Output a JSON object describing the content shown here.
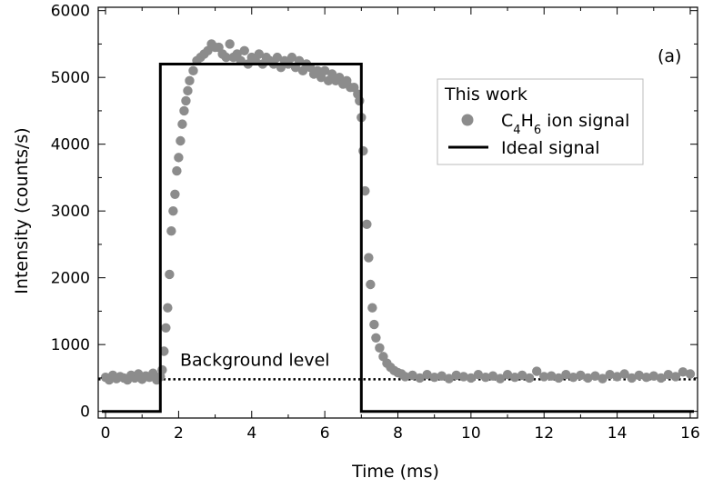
{
  "chart_data": {
    "type": "scatter",
    "xlabel": "Time (ms)",
    "ylabel": "Intensity (counts/s)",
    "xlim": [
      -0.2,
      16.2
    ],
    "ylim": [
      -100,
      6050
    ],
    "x_ticks": [
      0,
      2,
      4,
      6,
      8,
      10,
      12,
      14,
      16
    ],
    "y_ticks": [
      0,
      1000,
      2000,
      3000,
      4000,
      5000,
      6000
    ],
    "panel_label": "(a)",
    "legend": {
      "title": "This work",
      "position": "top-right",
      "entries": [
        {
          "label_main": "C",
          "sub1": "4",
          "mid": "H",
          "sub2": "6",
          "label_rest": " ion signal",
          "marker": "circle",
          "color": "#8c8c8c"
        },
        {
          "label": "Ideal signal",
          "marker": "line",
          "color": "#000000"
        }
      ]
    },
    "series": [
      {
        "name": "C4H6 ion signal",
        "style": "markers",
        "color": "#8c8c8c",
        "points": [
          [
            0.0,
            510
          ],
          [
            0.1,
            470
          ],
          [
            0.2,
            540
          ],
          [
            0.3,
            490
          ],
          [
            0.4,
            520
          ],
          [
            0.5,
            500
          ],
          [
            0.6,
            470
          ],
          [
            0.7,
            540
          ],
          [
            0.8,
            500
          ],
          [
            0.9,
            560
          ],
          [
            1.0,
            480
          ],
          [
            1.1,
            530
          ],
          [
            1.2,
            510
          ],
          [
            1.3,
            570
          ],
          [
            1.4,
            470
          ],
          [
            1.5,
            520
          ],
          [
            1.55,
            620
          ],
          [
            1.6,
            900
          ],
          [
            1.65,
            1250
          ],
          [
            1.7,
            1550
          ],
          [
            1.75,
            2050
          ],
          [
            1.8,
            2700
          ],
          [
            1.85,
            3000
          ],
          [
            1.9,
            3250
          ],
          [
            1.95,
            3600
          ],
          [
            2.0,
            3800
          ],
          [
            2.05,
            4050
          ],
          [
            2.1,
            4300
          ],
          [
            2.15,
            4500
          ],
          [
            2.2,
            4650
          ],
          [
            2.25,
            4800
          ],
          [
            2.3,
            4950
          ],
          [
            2.4,
            5100
          ],
          [
            2.5,
            5250
          ],
          [
            2.6,
            5300
          ],
          [
            2.7,
            5350
          ],
          [
            2.8,
            5400
          ],
          [
            2.9,
            5500
          ],
          [
            3.0,
            5450
          ],
          [
            3.1,
            5450
          ],
          [
            3.2,
            5350
          ],
          [
            3.3,
            5300
          ],
          [
            3.4,
            5500
          ],
          [
            3.5,
            5300
          ],
          [
            3.6,
            5350
          ],
          [
            3.7,
            5250
          ],
          [
            3.8,
            5400
          ],
          [
            3.9,
            5200
          ],
          [
            4.0,
            5300
          ],
          [
            4.1,
            5250
          ],
          [
            4.2,
            5350
          ],
          [
            4.3,
            5200
          ],
          [
            4.4,
            5300
          ],
          [
            4.5,
            5250
          ],
          [
            4.6,
            5200
          ],
          [
            4.7,
            5300
          ],
          [
            4.8,
            5150
          ],
          [
            4.9,
            5250
          ],
          [
            5.0,
            5200
          ],
          [
            5.1,
            5300
          ],
          [
            5.2,
            5150
          ],
          [
            5.3,
            5250
          ],
          [
            5.4,
            5100
          ],
          [
            5.5,
            5200
          ],
          [
            5.6,
            5150
          ],
          [
            5.7,
            5050
          ],
          [
            5.8,
            5100
          ],
          [
            5.9,
            5000
          ],
          [
            6.0,
            5100
          ],
          [
            6.1,
            4950
          ],
          [
            6.2,
            5050
          ],
          [
            6.3,
            4950
          ],
          [
            6.4,
            5000
          ],
          [
            6.5,
            4900
          ],
          [
            6.6,
            4950
          ],
          [
            6.7,
            4850
          ],
          [
            6.8,
            4850
          ],
          [
            6.9,
            4750
          ],
          [
            6.95,
            4650
          ],
          [
            7.0,
            4400
          ],
          [
            7.05,
            3900
          ],
          [
            7.1,
            3300
          ],
          [
            7.15,
            2800
          ],
          [
            7.2,
            2300
          ],
          [
            7.25,
            1900
          ],
          [
            7.3,
            1550
          ],
          [
            7.35,
            1300
          ],
          [
            7.4,
            1100
          ],
          [
            7.5,
            950
          ],
          [
            7.6,
            820
          ],
          [
            7.7,
            720
          ],
          [
            7.8,
            660
          ],
          [
            7.9,
            610
          ],
          [
            8.0,
            580
          ],
          [
            8.1,
            560
          ],
          [
            8.2,
            520
          ],
          [
            8.4,
            540
          ],
          [
            8.6,
            500
          ],
          [
            8.8,
            550
          ],
          [
            9.0,
            510
          ],
          [
            9.2,
            530
          ],
          [
            9.4,
            490
          ],
          [
            9.6,
            540
          ],
          [
            9.8,
            520
          ],
          [
            10.0,
            500
          ],
          [
            10.2,
            550
          ],
          [
            10.4,
            510
          ],
          [
            10.6,
            530
          ],
          [
            10.8,
            490
          ],
          [
            11.0,
            550
          ],
          [
            11.2,
            510
          ],
          [
            11.4,
            540
          ],
          [
            11.6,
            500
          ],
          [
            11.8,
            600
          ],
          [
            12.0,
            520
          ],
          [
            12.2,
            530
          ],
          [
            12.4,
            500
          ],
          [
            12.6,
            550
          ],
          [
            12.8,
            510
          ],
          [
            13.0,
            540
          ],
          [
            13.2,
            500
          ],
          [
            13.4,
            530
          ],
          [
            13.6,
            490
          ],
          [
            13.8,
            550
          ],
          [
            14.0,
            520
          ],
          [
            14.2,
            560
          ],
          [
            14.4,
            500
          ],
          [
            14.6,
            540
          ],
          [
            14.8,
            510
          ],
          [
            15.0,
            530
          ],
          [
            15.2,
            500
          ],
          [
            15.4,
            550
          ],
          [
            15.6,
            520
          ],
          [
            15.8,
            590
          ],
          [
            16.0,
            560
          ]
        ]
      },
      {
        "name": "Ideal signal",
        "style": "line",
        "color": "#000000",
        "points": [
          [
            -0.1,
            0
          ],
          [
            1.5,
            0
          ],
          [
            1.5,
            5200
          ],
          [
            7.0,
            5200
          ],
          [
            7.0,
            0
          ],
          [
            16.1,
            0
          ]
        ]
      }
    ],
    "annotations": [
      {
        "type": "hline",
        "y": 480,
        "style": "dotted",
        "label": "Background level"
      }
    ]
  }
}
